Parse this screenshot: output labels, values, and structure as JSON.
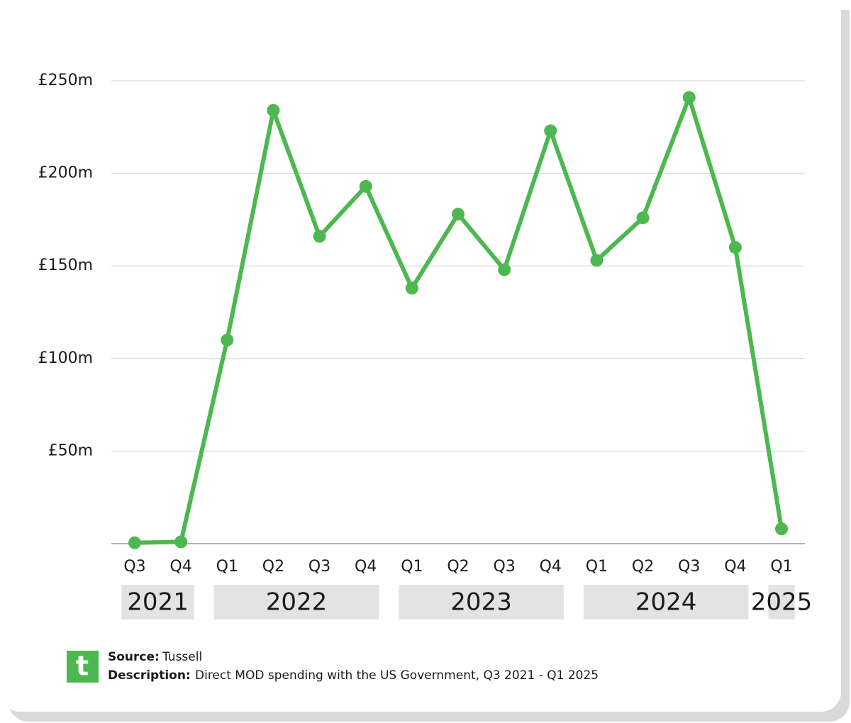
{
  "chart_data": {
    "type": "line",
    "categories": [
      "Q3",
      "Q4",
      "Q1",
      "Q2",
      "Q3",
      "Q4",
      "Q1",
      "Q2",
      "Q3",
      "Q4",
      "Q1",
      "Q2",
      "Q3",
      "Q4",
      "Q1"
    ],
    "year_labels": [
      "2021",
      "2022",
      "2023",
      "2024",
      "2025"
    ],
    "values": [
      0.5,
      1,
      110,
      234,
      166,
      193,
      138,
      178,
      148,
      223,
      153,
      176,
      241,
      160,
      8
    ],
    "color": "#4cb84f",
    "ylim": [
      0,
      250
    ],
    "yticks": [
      {
        "value": 50,
        "label": "£50m"
      },
      {
        "value": 100,
        "label": "£100m"
      },
      {
        "value": 150,
        "label": "£150m"
      },
      {
        "value": 200,
        "label": "£200m"
      },
      {
        "value": 250,
        "label": "£250m"
      }
    ],
    "grid": true
  },
  "footer": {
    "logo": "t",
    "source_label": "Source:",
    "source": "Tussell",
    "description_label": "Description:",
    "description": "Direct MOD spending with the US Government, Q3 2021 - Q1 2025"
  }
}
